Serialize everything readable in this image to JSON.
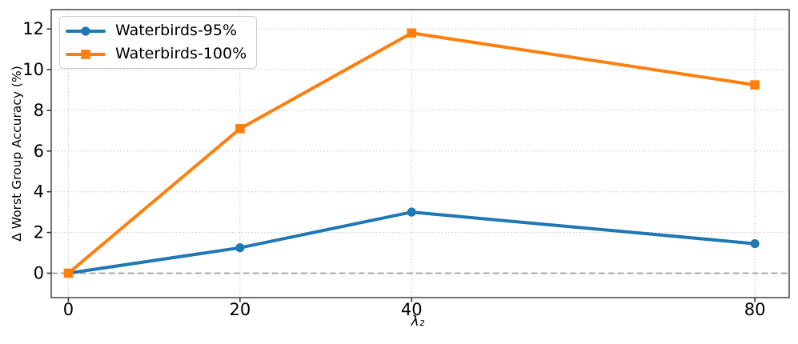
{
  "chart_data": {
    "type": "line",
    "title": "",
    "xlabel": "λ₂",
    "ylabel": "Δ Worst Group Accuracy (%)",
    "x": [
      0,
      20,
      40,
      80
    ],
    "series": [
      {
        "name": "Waterbirds-95%",
        "color": "#1f77b4",
        "marker": "circle",
        "values": [
          0,
          1.25,
          3.0,
          1.45
        ]
      },
      {
        "name": "Waterbirds-100%",
        "color": "#ff7f0e",
        "marker": "square",
        "values": [
          0,
          7.1,
          11.8,
          9.25
        ]
      }
    ],
    "xticks": [
      0,
      20,
      40,
      80
    ],
    "yticks": [
      0,
      2,
      4,
      6,
      8,
      10,
      12
    ],
    "xlim": [
      -2,
      84
    ],
    "ylim": [
      -1.2,
      12.95
    ],
    "grid": true,
    "grid_style": "dotted",
    "zero_line": {
      "y": 0,
      "style": "dashed"
    },
    "legend_position": "upper-left",
    "colors": {
      "grid": "#cccccc",
      "zero_line": "#9e9e9e",
      "spine": "#5a5a5a",
      "tick": "#333333",
      "text": "#000000",
      "background": "#ffffff"
    }
  }
}
